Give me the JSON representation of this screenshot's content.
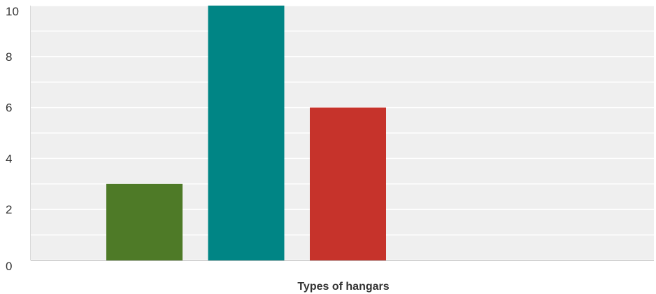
{
  "chart_data": {
    "type": "bar",
    "title": "",
    "xlabel": "Types of hangars",
    "ylabel": "",
    "ylim": [
      0,
      10
    ],
    "yticks": [
      0,
      2,
      4,
      6,
      8,
      10
    ],
    "grid": true,
    "legend": "none",
    "plot_background": "#efefef",
    "series": [
      {
        "values": [
          3
        ],
        "color": "#4e7a27"
      },
      {
        "values": [
          10
        ],
        "color": "#008585"
      },
      {
        "values": [
          6
        ],
        "color": "#c6332b"
      }
    ]
  }
}
